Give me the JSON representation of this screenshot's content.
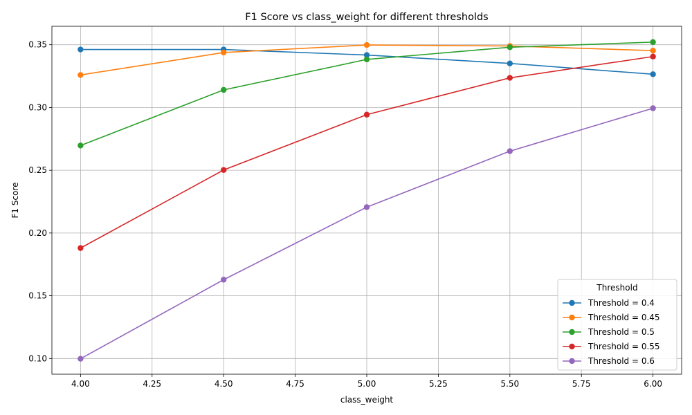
{
  "chart_data": {
    "type": "line",
    "title": "F1 Score vs class_weight for different thresholds",
    "xlabel": "class_weight",
    "ylabel": "F1 Score",
    "x": [
      4.0,
      4.5,
      5.0,
      5.5,
      6.0
    ],
    "xlim": [
      3.9,
      6.1
    ],
    "ylim": [
      0.0875,
      0.3647
    ],
    "xticks": [
      "4.00",
      "4.25",
      "4.50",
      "4.75",
      "5.00",
      "5.25",
      "5.50",
      "5.75",
      "6.00"
    ],
    "xtick_values": [
      4.0,
      4.25,
      4.5,
      4.75,
      5.0,
      5.25,
      5.5,
      5.75,
      6.0
    ],
    "yticks": [
      "0.10",
      "0.15",
      "0.20",
      "0.25",
      "0.30",
      "0.35"
    ],
    "ytick_values": [
      0.1,
      0.15,
      0.2,
      0.25,
      0.3,
      0.35
    ],
    "grid": true,
    "legend": {
      "title": "Threshold",
      "position": "lower right"
    },
    "series": [
      {
        "name": "Threshold = 0.4",
        "color": "#1f77b4",
        "values": [
          0.3462,
          0.3462,
          0.3418,
          0.3351,
          0.3265
        ]
      },
      {
        "name": "Threshold = 0.45",
        "color": "#ff7f0e",
        "values": [
          0.3259,
          0.3438,
          0.3498,
          0.349,
          0.3453
        ]
      },
      {
        "name": "Threshold = 0.5",
        "color": "#2ca02c",
        "values": [
          0.2697,
          0.314,
          0.3383,
          0.348,
          0.3521
        ]
      },
      {
        "name": "Threshold = 0.55",
        "color": "#d62728",
        "values": [
          0.188,
          0.2502,
          0.2943,
          0.3236,
          0.3406
        ]
      },
      {
        "name": "Threshold = 0.6",
        "color": "#9467bd",
        "values": [
          0.0998,
          0.1628,
          0.2206,
          0.2652,
          0.2994
        ]
      }
    ]
  }
}
